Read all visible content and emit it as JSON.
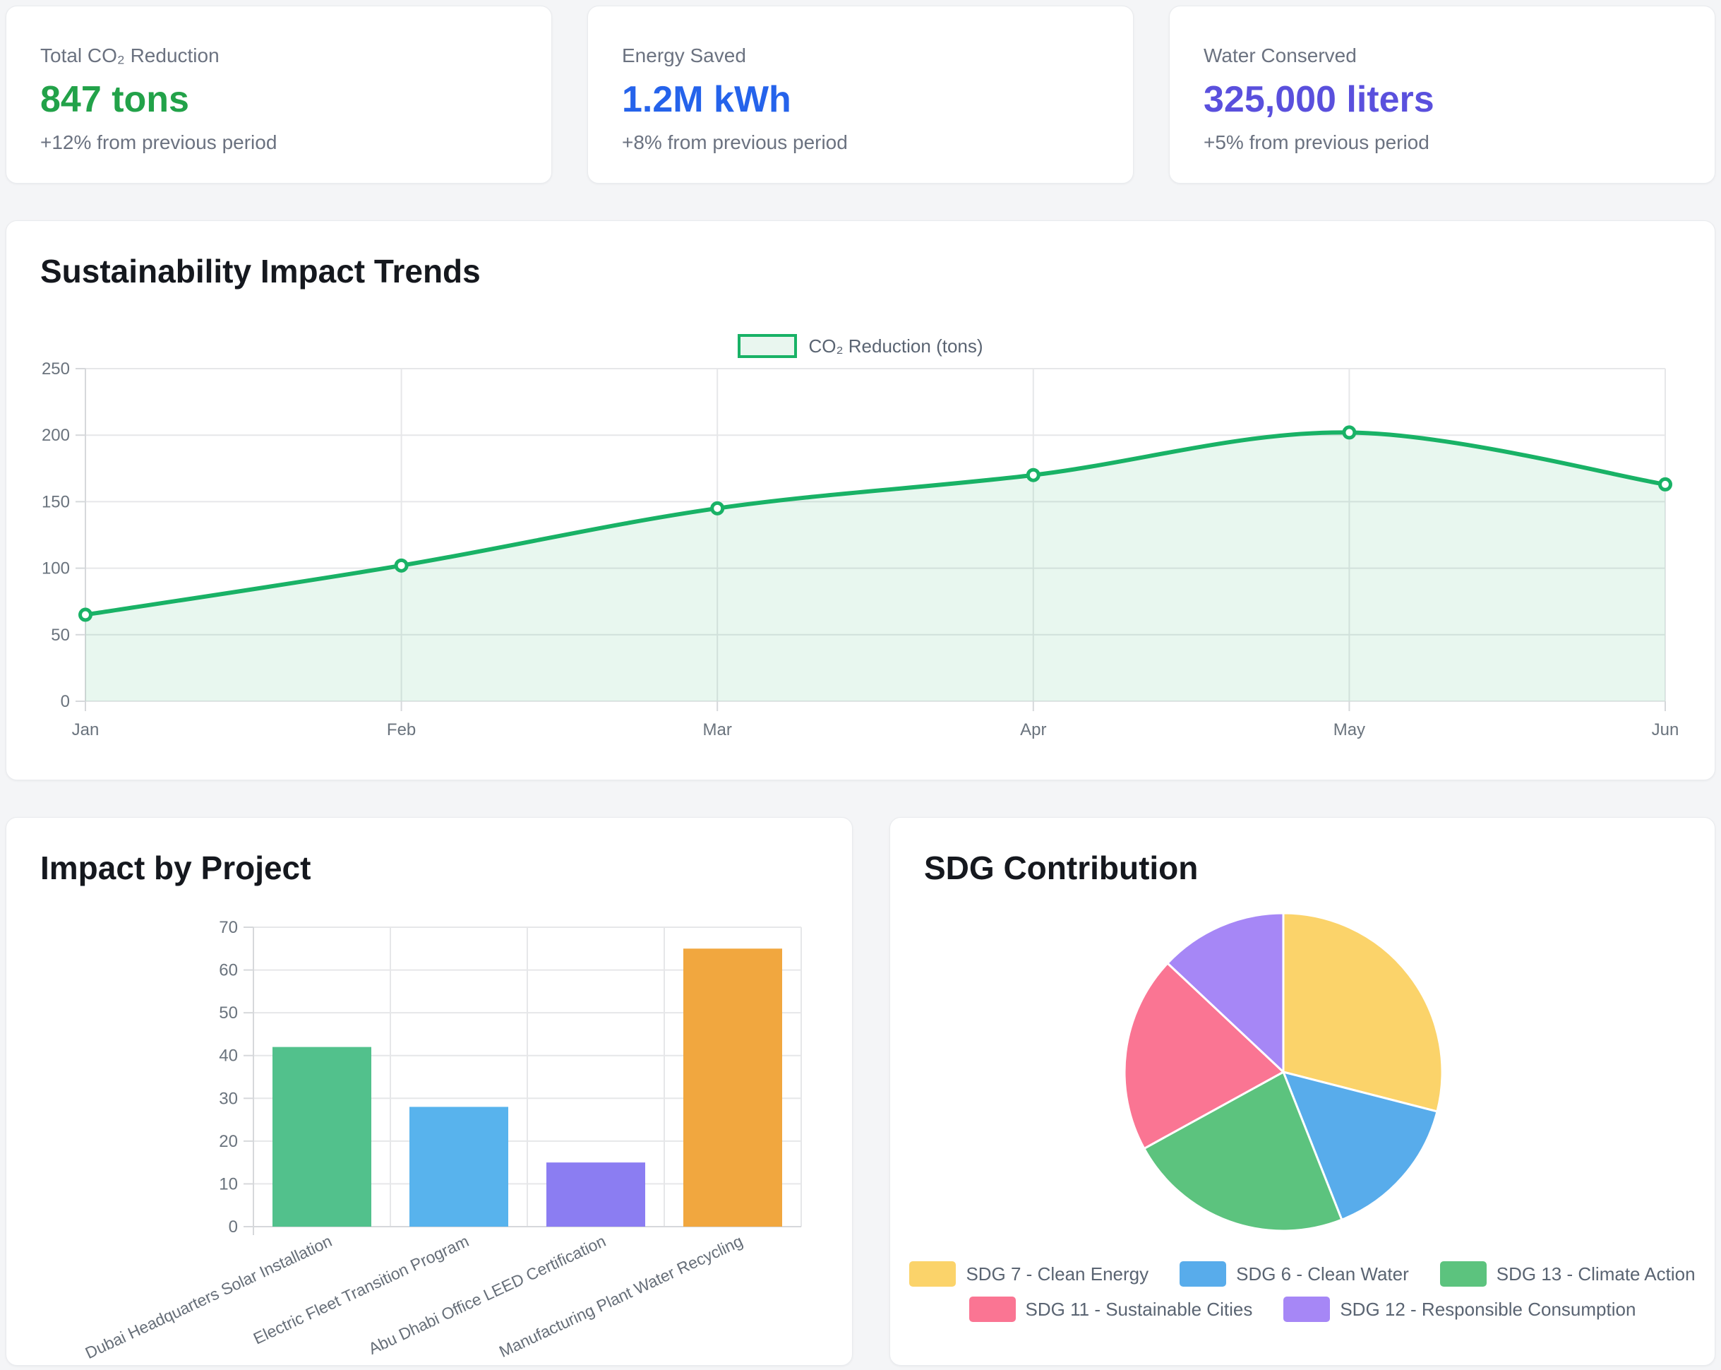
{
  "page": {
    "background_color": "#f4f5f7"
  },
  "cards": [
    {
      "label": "Total CO₂ Reduction",
      "value": "847 tons",
      "value_color": "#22a249",
      "change": "+12% from previous period"
    },
    {
      "label": "Energy Saved",
      "value": "1.2M kWh",
      "value_color": "#2563eb",
      "change": "+8% from previous period"
    },
    {
      "label": "Water Conserved",
      "value": "325,000 liters",
      "value_color": "#5a50dd",
      "change": "+5% from previous period"
    }
  ],
  "chart_data": [
    {
      "id": "sustainability_impact_trends",
      "type": "area",
      "title": "Sustainability Impact Trends",
      "legend": "CO₂ Reduction (tons)",
      "legend_position": "top-center",
      "x": [
        "Jan",
        "Feb",
        "Mar",
        "Apr",
        "May",
        "Jun"
      ],
      "series": [
        {
          "name": "CO₂ Reduction (tons)",
          "values": [
            65,
            102,
            145,
            170,
            202,
            163
          ]
        }
      ],
      "ylim": [
        0,
        250
      ],
      "yticks": [
        0,
        50,
        100,
        150,
        200,
        250
      ],
      "grid": true,
      "line_color": "#19b266",
      "fill_color": "rgba(25,178,102,0.10)",
      "marker": "open-circle"
    },
    {
      "id": "impact_by_project",
      "type": "bar",
      "title": "Impact by Project",
      "categories": [
        "Dubai Headquarters Solar Installation",
        "Electric Fleet Transition Program",
        "Abu Dhabi Office LEED Certification",
        "Manufacturing Plant Water Recycling"
      ],
      "values": [
        42,
        28,
        15,
        65
      ],
      "bar_colors": [
        "#52c18c",
        "#58b3ed",
        "#8b7df2",
        "#f1a73f"
      ],
      "ylim": [
        0,
        70
      ],
      "yticks": [
        0,
        10,
        20,
        30,
        40,
        50,
        60,
        70
      ],
      "grid": true
    },
    {
      "id": "sdg_contribution",
      "type": "pie",
      "title": "SDG Contribution",
      "start_angle_deg": 0,
      "direction": "clockwise",
      "legend_position": "bottom-center",
      "slices": [
        {
          "label": "SDG 7 - Clean Energy",
          "pct": 29,
          "color": "#fbd36a"
        },
        {
          "label": "SDG 6 - Clean Water",
          "pct": 15,
          "color": "#58aceb"
        },
        {
          "label": "SDG 13 - Climate Action",
          "pct": 23,
          "color": "#5cc37e"
        },
        {
          "label": "SDG 11 - Sustainable Cities",
          "pct": 20,
          "color": "#fa7593"
        },
        {
          "label": "SDG 12 - Responsible Consumption",
          "pct": 13,
          "color": "#a687f6"
        }
      ]
    }
  ]
}
